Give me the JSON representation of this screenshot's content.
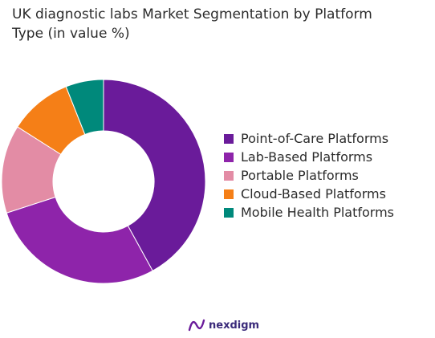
{
  "title": "UK diagnostic labs Market Segmentation by Platform\nType (in value %)",
  "brand": {
    "name": "nexdigm",
    "icon": "nexdigm-logo-icon"
  },
  "chart_data": {
    "type": "pie",
    "donut": true,
    "title": "UK diagnostic labs Market Segmentation by Platform Type (in value %)",
    "legend_position": "right",
    "categories": [
      "Point-of-Care Platforms",
      "Lab-Based Platforms",
      "Portable Platforms",
      "Cloud-Based Platforms",
      "Mobile Health Platforms"
    ],
    "values": [
      42,
      28,
      14,
      10,
      6
    ],
    "colors": [
      "#6a1b9a",
      "#8e24aa",
      "#e38ca5",
      "#f57f17",
      "#00897b"
    ]
  }
}
